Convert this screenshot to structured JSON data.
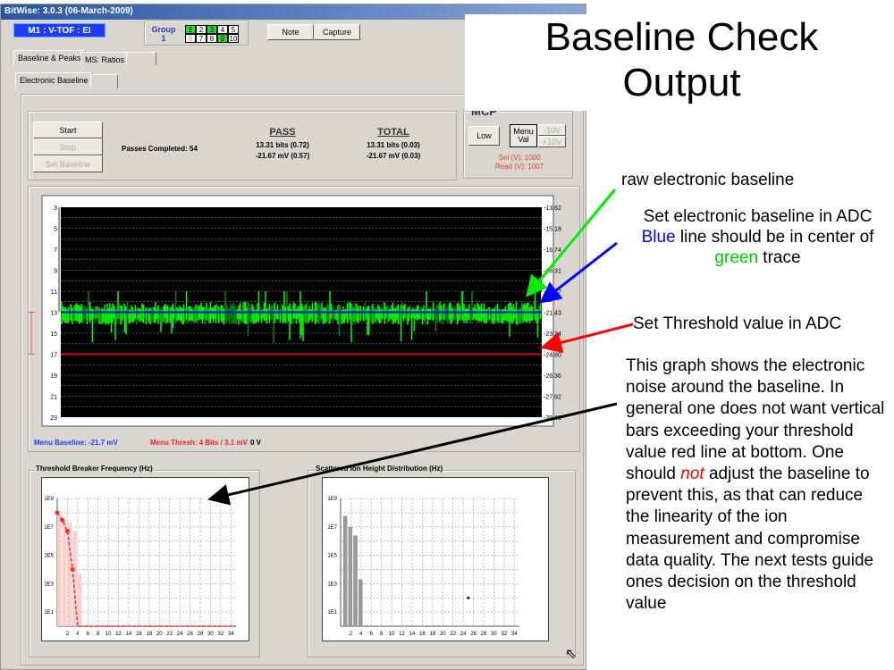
{
  "window": {
    "title": "BitWise: 3.0.3 (06-March-2009)",
    "mode_label": "M1 : V-TOF : EI"
  },
  "group": {
    "label": "Group",
    "number": "1",
    "cells": [
      {
        "n": "1",
        "on": true
      },
      {
        "n": "2",
        "on": false
      },
      {
        "n": "3",
        "on": true
      },
      {
        "n": "4",
        "on": false
      },
      {
        "n": "5",
        "on": false
      },
      {
        "n": "6",
        "on": false,
        "dim": true
      },
      {
        "n": "7",
        "on": false
      },
      {
        "n": "8",
        "on": false
      },
      {
        "n": "9",
        "on": true
      },
      {
        "n": "10",
        "on": false
      }
    ]
  },
  "toolbar": {
    "note": "Note",
    "capture": "Capture"
  },
  "tabs": [
    "Baseline & Peaks",
    "MS: Ratios",
    ""
  ],
  "subtabs": [
    "Electronic Baseline",
    ""
  ],
  "controls": {
    "start": "Start",
    "stop": "Stop",
    "set_baseline": "Set Baseline",
    "passes": "Passes Completed: 54"
  },
  "pass": {
    "header": "PASS",
    "bits": "13.31 bits (0.72)",
    "mv": "-21.67 mV (0.57)"
  },
  "total": {
    "header": "TOTAL",
    "bits": "13.31 bits (0.03)",
    "mv": "-21.67 mV (0.03)"
  },
  "mcp": {
    "title": "MCP",
    "low": "Low",
    "menu_val": "Menu Val",
    "minus": "-10V",
    "plus": "+10V",
    "set": "Set (V): 1000",
    "read": "Read (V): 1007"
  },
  "status": {
    "baseline": "Menu Baseline: -21.7 mV",
    "thresh": "Menu Thresh: 4 Bits / 3.1 mV",
    "volts": "0 V"
  },
  "colors": {
    "trace": "#00ff00",
    "baseline": "#0000ff",
    "threshold": "#ff0000"
  },
  "chart_data": [
    {
      "type": "line",
      "name": "baseline-trace",
      "ylabel_left": "bits",
      "yticks_left": [
        "3",
        "5",
        "7",
        "9",
        "11",
        "13",
        "15",
        "17",
        "19",
        "21",
        "23"
      ],
      "yticks_right": [
        "-13.62",
        "-15.18",
        "-16.74",
        "-18.31",
        "-19.87",
        "-21.43",
        "-23.24",
        "-24.80",
        "-26.36",
        "-27.92",
        "-29.49"
      ],
      "ylim": [
        3,
        23
      ],
      "baseline_bits": 13,
      "threshold_bits": 17,
      "trace_range_bits": [
        11,
        16
      ],
      "grid": true
    },
    {
      "type": "bar",
      "title": "Threshold Breaker Frequency (Hz)",
      "yscale": "log",
      "ylim": [
        1,
        1000000000.0
      ],
      "yticks": [
        "1E1",
        "1E3",
        "1E5",
        "1E7",
        "1E9"
      ],
      "xticks": [
        "2",
        "4",
        "6",
        "8",
        "10",
        "12",
        "14",
        "16",
        "18",
        "20",
        "22",
        "24",
        "26",
        "28",
        "30",
        "32",
        "34"
      ],
      "xlim": [
        0,
        35
      ],
      "bars": {
        "x": [
          0,
          1,
          2,
          3,
          4
        ],
        "values": [
          70000000.0,
          30000000.0,
          20000000.0,
          5000000.0,
          5000.0
        ]
      },
      "line": {
        "x": [
          0,
          1,
          2,
          3,
          4,
          35
        ],
        "values": [
          100000000.0,
          30000000.0,
          5000000.0,
          10000.0,
          1,
          1
        ]
      },
      "grid": true
    },
    {
      "type": "bar",
      "title": "Scattered Ion Height Distribution (Hz)",
      "yscale": "log",
      "ylim": [
        1,
        1000000000.0
      ],
      "yticks": [
        "1E1",
        "1E3",
        "1E5",
        "1E7",
        "1E9"
      ],
      "xticks": [
        "2",
        "4",
        "6",
        "8",
        "10",
        "12",
        "14",
        "16",
        "18",
        "20",
        "22",
        "24",
        "26",
        "28",
        "30",
        "32",
        "34"
      ],
      "xlim": [
        0,
        35
      ],
      "bars": {
        "x": [
          1,
          2,
          3,
          4
        ],
        "values": [
          60000000.0,
          10000000.0,
          2500000.0,
          2000.0
        ]
      },
      "points": {
        "x": [
          25
        ],
        "values": [
          100
        ]
      },
      "grid": true
    }
  ],
  "annotations": {
    "title": "Baseline Check Output",
    "raw": "raw electronic baseline",
    "set1": "Set electronic baseline in ADC",
    "blue_word": "Blue",
    "blue_rest": " line should be in center of ",
    "green_word": "green",
    "green_rest": " trace",
    "thresh": "Set Threshold value in ADC",
    "desc1": "This graph shows the electronic noise around the baseline.  In general one does not want vertical bars exceeding your threshold value red line at bottom.  One should ",
    "desc_not": "not",
    "desc2": " adjust the baseline to prevent this, as that can reduce the linearity of the ion measurement and compromise data quality.  The next tests guide ones decision on the threshold value"
  }
}
